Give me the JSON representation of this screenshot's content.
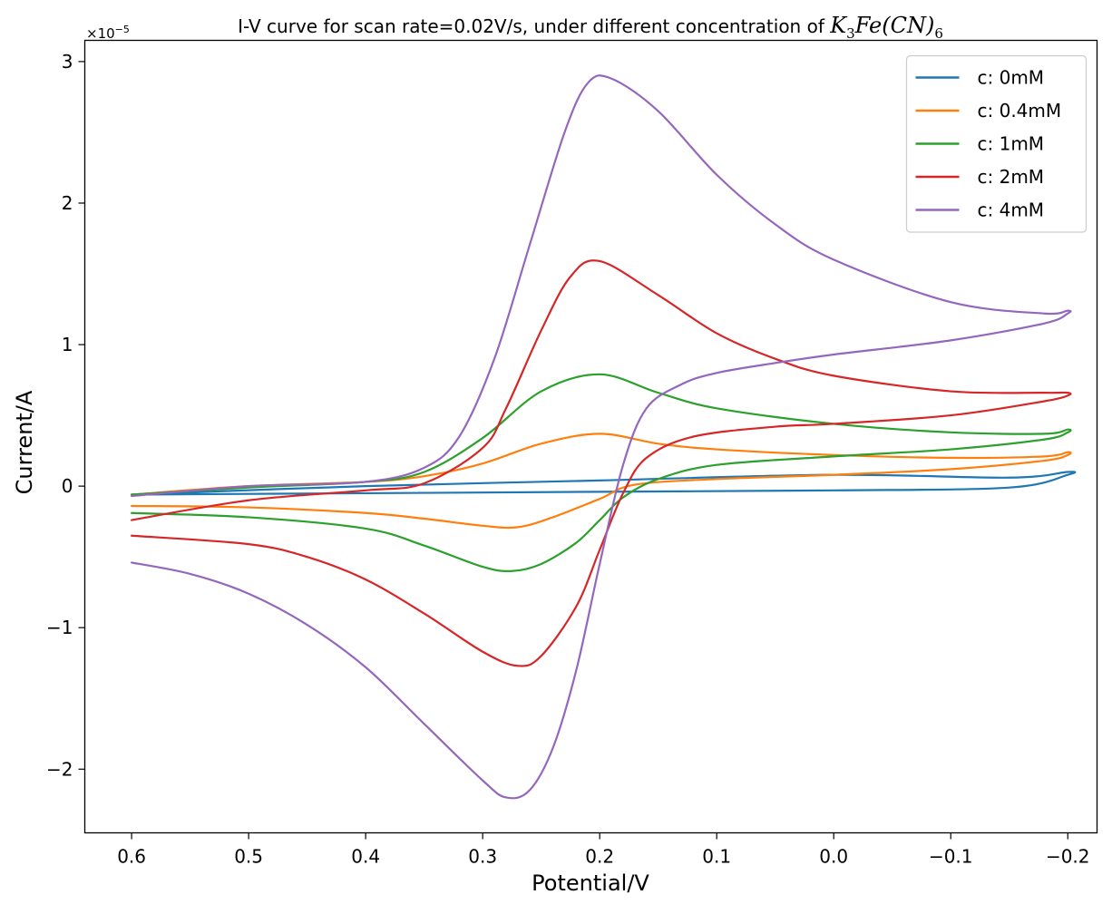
{
  "chart_data": {
    "type": "line",
    "title_text": "I-V curve for scan rate=0.02V/s, under different concentration of ",
    "title_species": "K",
    "title_sub1": "3",
    "title_mid": "Fe(CN)",
    "title_sub2": "6",
    "xlabel": "Potential/V",
    "ylabel": "Current/A",
    "y_offset_label": "×10",
    "y_offset_exponent": "−5",
    "xlim": [
      0.64,
      -0.225
    ],
    "ylim": [
      -2.45,
      3.15
    ],
    "x_inverted": true,
    "x_ticks": [
      0.6,
      0.5,
      0.4,
      0.3,
      0.2,
      0.1,
      0.0,
      -0.1,
      -0.2
    ],
    "x_tick_labels": [
      "0.6",
      "0.5",
      "0.4",
      "0.3",
      "0.2",
      "0.1",
      "0.0",
      "−0.1",
      "−0.2"
    ],
    "y_ticks": [
      -2,
      -1,
      0,
      1,
      2,
      3
    ],
    "y_tick_labels": [
      "−2",
      "−1",
      "0",
      "1",
      "2",
      "3"
    ],
    "grid": false,
    "legend_position": "top-right",
    "series": [
      {
        "name": "c: 0mM",
        "color": "#1f77b4",
        "forward": [
          [
            0.6,
            -0.06
          ],
          [
            0.4,
            -0.05
          ],
          [
            0.2,
            -0.04
          ],
          [
            0.0,
            -0.03
          ],
          [
            -0.15,
            -0.01
          ],
          [
            -0.2,
            0.08
          ]
        ],
        "reverse": [
          [
            -0.2,
            0.1
          ],
          [
            -0.15,
            0.06
          ],
          [
            0.0,
            0.08
          ],
          [
            0.2,
            0.04
          ],
          [
            0.4,
            0.0
          ],
          [
            0.6,
            -0.06
          ]
        ]
      },
      {
        "name": "c: 0.4mM",
        "color": "#ff7f0e",
        "forward": [
          [
            0.6,
            -0.14
          ],
          [
            0.5,
            -0.15
          ],
          [
            0.4,
            -0.19
          ],
          [
            0.35,
            -0.23
          ],
          [
            0.3,
            -0.28
          ],
          [
            0.27,
            -0.29
          ],
          [
            0.24,
            -0.22
          ],
          [
            0.2,
            -0.09
          ],
          [
            0.17,
            0.01
          ],
          [
            0.1,
            0.05
          ],
          [
            0.0,
            0.08
          ],
          [
            -0.1,
            0.12
          ],
          [
            -0.18,
            0.18
          ],
          [
            -0.2,
            0.22
          ]
        ],
        "reverse": [
          [
            -0.2,
            0.24
          ],
          [
            -0.18,
            0.21
          ],
          [
            -0.1,
            0.2
          ],
          [
            0.0,
            0.22
          ],
          [
            0.1,
            0.26
          ],
          [
            0.15,
            0.3
          ],
          [
            0.2,
            0.37
          ],
          [
            0.25,
            0.3
          ],
          [
            0.3,
            0.16
          ],
          [
            0.35,
            0.07
          ],
          [
            0.4,
            0.03
          ],
          [
            0.5,
            0.0
          ],
          [
            0.6,
            -0.06
          ]
        ]
      },
      {
        "name": "c: 1mM",
        "color": "#2ca02c",
        "forward": [
          [
            0.6,
            -0.19
          ],
          [
            0.5,
            -0.22
          ],
          [
            0.4,
            -0.3
          ],
          [
            0.35,
            -0.42
          ],
          [
            0.3,
            -0.57
          ],
          [
            0.275,
            -0.6
          ],
          [
            0.25,
            -0.55
          ],
          [
            0.22,
            -0.4
          ],
          [
            0.2,
            -0.24
          ],
          [
            0.18,
            -0.08
          ],
          [
            0.15,
            0.05
          ],
          [
            0.1,
            0.15
          ],
          [
            0.0,
            0.21
          ],
          [
            -0.1,
            0.26
          ],
          [
            -0.18,
            0.33
          ],
          [
            -0.2,
            0.38
          ]
        ],
        "reverse": [
          [
            -0.2,
            0.4
          ],
          [
            -0.18,
            0.37
          ],
          [
            -0.1,
            0.38
          ],
          [
            0.0,
            0.44
          ],
          [
            0.1,
            0.55
          ],
          [
            0.15,
            0.66
          ],
          [
            0.2,
            0.79
          ],
          [
            0.25,
            0.67
          ],
          [
            0.3,
            0.34
          ],
          [
            0.35,
            0.1
          ],
          [
            0.4,
            0.03
          ],
          [
            0.5,
            -0.01
          ],
          [
            0.6,
            -0.06
          ]
        ]
      },
      {
        "name": "c: 2mM",
        "color": "#d62728",
        "forward": [
          [
            0.6,
            -0.35
          ],
          [
            0.5,
            -0.41
          ],
          [
            0.45,
            -0.5
          ],
          [
            0.4,
            -0.66
          ],
          [
            0.35,
            -0.9
          ],
          [
            0.3,
            -1.17
          ],
          [
            0.27,
            -1.27
          ],
          [
            0.25,
            -1.2
          ],
          [
            0.22,
            -0.85
          ],
          [
            0.2,
            -0.45
          ],
          [
            0.18,
            -0.05
          ],
          [
            0.16,
            0.2
          ],
          [
            0.12,
            0.35
          ],
          [
            0.05,
            0.42
          ],
          [
            0.0,
            0.44
          ],
          [
            -0.1,
            0.5
          ],
          [
            -0.18,
            0.6
          ],
          [
            -0.2,
            0.64
          ]
        ],
        "reverse": [
          [
            -0.2,
            0.66
          ],
          [
            -0.18,
            0.66
          ],
          [
            -0.1,
            0.67
          ],
          [
            0.0,
            0.78
          ],
          [
            0.05,
            0.9
          ],
          [
            0.1,
            1.08
          ],
          [
            0.15,
            1.35
          ],
          [
            0.2,
            1.59
          ],
          [
            0.225,
            1.48
          ],
          [
            0.25,
            1.1
          ],
          [
            0.28,
            0.55
          ],
          [
            0.3,
            0.27
          ],
          [
            0.35,
            0.02
          ],
          [
            0.4,
            -0.03
          ],
          [
            0.5,
            -0.1
          ],
          [
            0.6,
            -0.24
          ]
        ]
      },
      {
        "name": "c: 4mM",
        "color": "#9467bd",
        "forward": [
          [
            0.6,
            -0.54
          ],
          [
            0.55,
            -0.62
          ],
          [
            0.5,
            -0.76
          ],
          [
            0.45,
            -0.98
          ],
          [
            0.4,
            -1.28
          ],
          [
            0.35,
            -1.68
          ],
          [
            0.3,
            -2.08
          ],
          [
            0.28,
            -2.2
          ],
          [
            0.26,
            -2.15
          ],
          [
            0.24,
            -1.85
          ],
          [
            0.22,
            -1.3
          ],
          [
            0.2,
            -0.55
          ],
          [
            0.18,
            0.15
          ],
          [
            0.16,
            0.55
          ],
          [
            0.13,
            0.72
          ],
          [
            0.1,
            0.8
          ],
          [
            0.05,
            0.87
          ],
          [
            0.0,
            0.93
          ],
          [
            -0.1,
            1.03
          ],
          [
            -0.18,
            1.15
          ],
          [
            -0.2,
            1.22
          ]
        ],
        "reverse": [
          [
            -0.2,
            1.24
          ],
          [
            -0.18,
            1.22
          ],
          [
            -0.1,
            1.3
          ],
          [
            0.0,
            1.6
          ],
          [
            0.05,
            1.85
          ],
          [
            0.1,
            2.2
          ],
          [
            0.15,
            2.65
          ],
          [
            0.19,
            2.88
          ],
          [
            0.21,
            2.85
          ],
          [
            0.23,
            2.5
          ],
          [
            0.26,
            1.7
          ],
          [
            0.29,
            0.9
          ],
          [
            0.32,
            0.35
          ],
          [
            0.35,
            0.13
          ],
          [
            0.4,
            0.03
          ],
          [
            0.5,
            0.0
          ],
          [
            0.6,
            -0.07
          ]
        ]
      }
    ]
  }
}
